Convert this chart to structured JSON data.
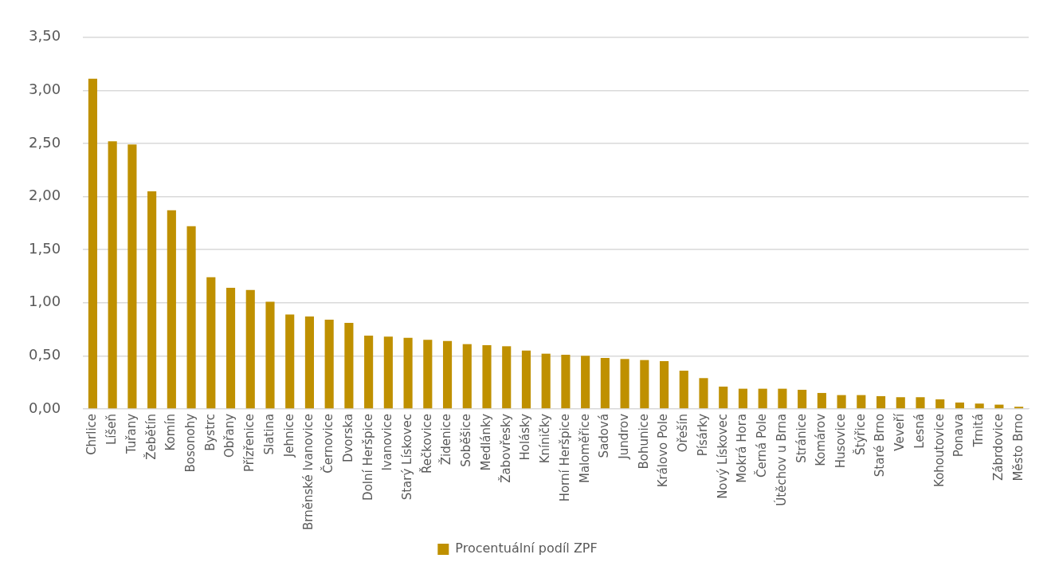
{
  "chart_data": {
    "type": "bar",
    "categories": [
      "Chrlice",
      "Líšeň",
      "Tuřany",
      "Žebětín",
      "Komín",
      "Bosonohy",
      "Bystrc",
      "Obřany",
      "Přízřenice",
      "Slatina",
      "Jehnice",
      "Brněnské Ivanovice",
      "Černovice",
      "Dvorska",
      "Dolní Heršpice",
      "Ivanovice",
      "Starý Lískovec",
      "Řečkovice",
      "Židenice",
      "Soběšice",
      "Medlánky",
      "Žabovřesky",
      "Holásky",
      "Kníničky",
      "Horní Heršpice",
      "Maloměřice",
      "Sadová",
      "Jundrov",
      "Bohunice",
      "Královo Pole",
      "Ořešín",
      "Písárky",
      "Nový Lískovec",
      "Mokrá Hora",
      "Černá Pole",
      "Útěchov u Brna",
      "Stránice",
      "Komárov",
      "Husovice",
      "Štýřice",
      "Staré Brno",
      "Veveří",
      "Lesná",
      "Kohoutovice",
      "Ponava",
      "Trnitá",
      "Zábrdovice",
      "Město Brno"
    ],
    "series": [
      {
        "name": "Procentuální podíl ZPF",
        "color": "#bf9000",
        "values": [
          3.11,
          2.52,
          2.49,
          2.05,
          1.87,
          1.72,
          1.24,
          1.14,
          1.12,
          1.01,
          0.89,
          0.87,
          0.84,
          0.81,
          0.69,
          0.68,
          0.67,
          0.65,
          0.64,
          0.61,
          0.6,
          0.59,
          0.55,
          0.52,
          0.51,
          0.5,
          0.48,
          0.47,
          0.46,
          0.45,
          0.36,
          0.29,
          0.21,
          0.19,
          0.19,
          0.19,
          0.18,
          0.15,
          0.13,
          0.13,
          0.12,
          0.11,
          0.11,
          0.09,
          0.06,
          0.05,
          0.04,
          0.02
        ]
      }
    ],
    "ylim": [
      0,
      3.5
    ],
    "yticks": [
      {
        "value": 0,
        "label": "0,00"
      },
      {
        "value": 0.5,
        "label": "0,50"
      },
      {
        "value": 1,
        "label": "1,00"
      },
      {
        "value": 1.5,
        "label": "1,50"
      },
      {
        "value": 2,
        "label": "2,00"
      },
      {
        "value": 2.5,
        "label": "2,50"
      },
      {
        "value": 3,
        "label": "3,00"
      },
      {
        "value": 3.5,
        "label": "3,50"
      }
    ],
    "grid": "y",
    "legend": "bottom"
  }
}
